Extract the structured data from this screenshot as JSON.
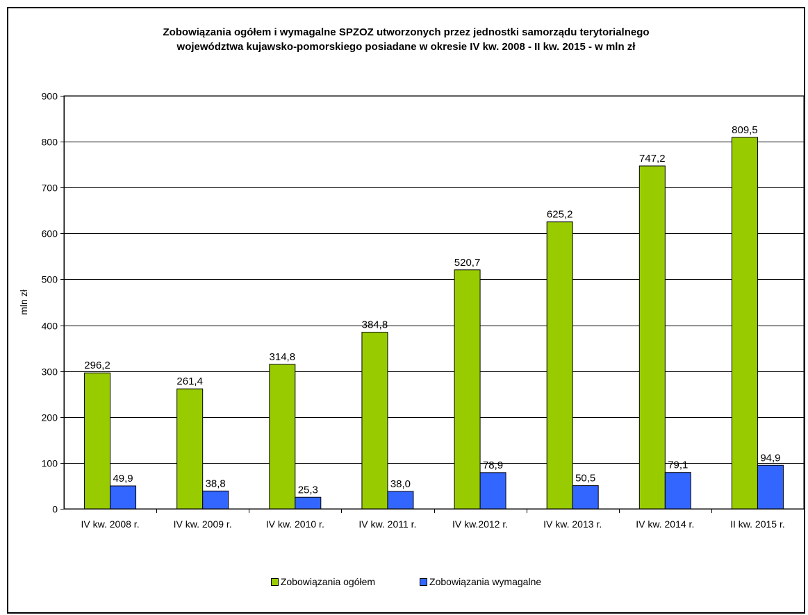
{
  "chart_data": {
    "type": "bar",
    "title_lines": [
      "Zobowiązania ogółem i wymagalne SPZOZ utworzonych przez  jednostki samorządu terytorialnego",
      "województwa kujawsko-pomorskiego posiadane w okresie IV kw. 2008 - II kw. 2015 - w mln zł"
    ],
    "ylabel": "mln zł",
    "xlabel": "",
    "ylim": [
      0,
      900
    ],
    "yticks": [
      0,
      100,
      200,
      300,
      400,
      500,
      600,
      700,
      800,
      900
    ],
    "grid": true,
    "legend_position": "bottom",
    "categories": [
      "IV kw. 2008 r.",
      "IV kw. 2009 r.",
      "IV kw. 2010 r.",
      "IV kw. 2011 r.",
      "IV kw.2012 r.",
      "IV kw. 2013 r.",
      "IV kw. 2014 r.",
      "II kw. 2015 r."
    ],
    "series": [
      {
        "name": "Zobowiązania ogółem",
        "color": "#99cc00",
        "values": [
          296.2,
          261.4,
          314.8,
          384.8,
          520.7,
          625.2,
          747.2,
          809.5
        ],
        "labels": [
          "296,2",
          "261,4",
          "314,8",
          "384,8",
          "520,7",
          "625,2",
          "747,2",
          "809,5"
        ]
      },
      {
        "name": "Zobowiązania wymagalne",
        "color": "#3366ff",
        "values": [
          49.9,
          38.8,
          25.3,
          38.0,
          78.9,
          50.5,
          79.1,
          94.9
        ],
        "labels": [
          "49,9",
          "38,8",
          "25,3",
          "38,0",
          "78,9",
          "50,5",
          "79,1",
          "94,9"
        ]
      }
    ]
  }
}
